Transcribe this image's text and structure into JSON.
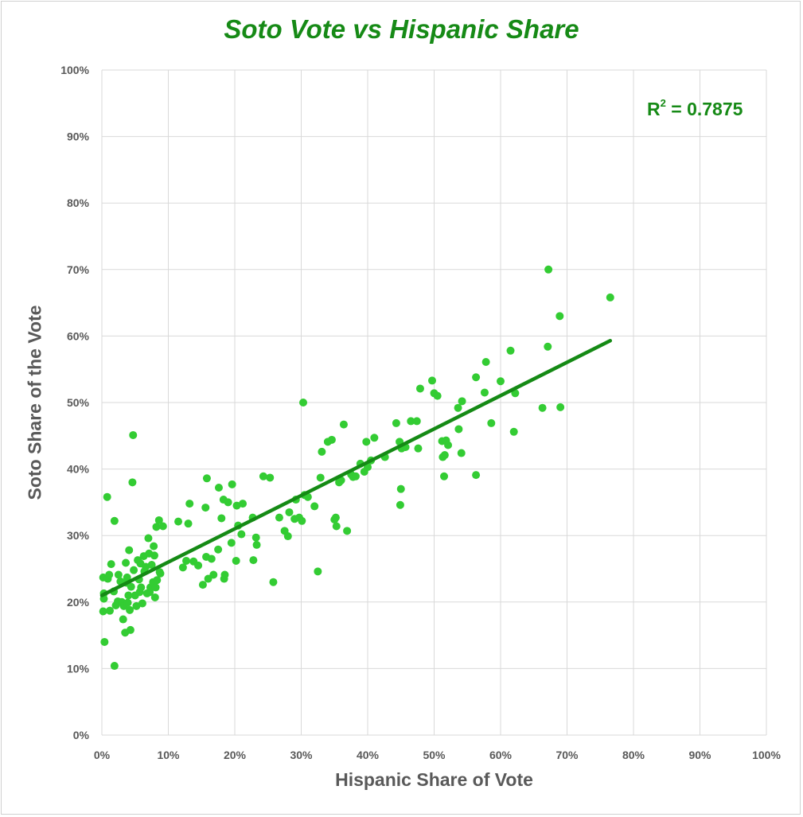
{
  "chart_data": {
    "type": "scatter",
    "title": "Soto Vote vs Hispanic Share",
    "xlabel": "Hispanic Share of Vote",
    "ylabel": "Soto Share of the Vote",
    "xlim": [
      0,
      1
    ],
    "ylim": [
      0,
      1
    ],
    "x_ticks": [
      "0%",
      "10%",
      "20%",
      "30%",
      "40%",
      "50%",
      "60%",
      "70%",
      "80%",
      "90%",
      "100%"
    ],
    "y_ticks": [
      "0%",
      "10%",
      "20%",
      "30%",
      "40%",
      "50%",
      "60%",
      "70%",
      "80%",
      "90%",
      "100%"
    ],
    "grid": true,
    "annotation_label": "R",
    "annotation_sup": "2",
    "annotation_value": " = 0.7875",
    "trendline": {
      "x": [
        0.0,
        0.765
      ],
      "y": [
        0.21,
        0.593
      ]
    },
    "colors": {
      "points": "#33cc33",
      "trendline": "#158a15",
      "title": "#168a16",
      "grid": "#d9d9d9",
      "axis_text": "#595959"
    },
    "series": [
      {
        "points": [
          [
            0.002,
            0.237
          ],
          [
            0.003,
            0.205
          ],
          [
            0.003,
            0.213
          ],
          [
            0.002,
            0.186
          ],
          [
            0.004,
            0.14
          ],
          [
            0.008,
            0.358
          ],
          [
            0.009,
            0.235
          ],
          [
            0.011,
            0.241
          ],
          [
            0.012,
            0.187
          ],
          [
            0.014,
            0.257
          ],
          [
            0.018,
            0.216
          ],
          [
            0.019,
            0.322
          ],
          [
            0.019,
            0.104
          ],
          [
            0.021,
            0.195
          ],
          [
            0.024,
            0.201
          ],
          [
            0.025,
            0.241
          ],
          [
            0.028,
            0.231
          ],
          [
            0.03,
            0.2
          ],
          [
            0.032,
            0.174
          ],
          [
            0.033,
            0.194
          ],
          [
            0.035,
            0.154
          ],
          [
            0.036,
            0.259
          ],
          [
            0.037,
            0.229
          ],
          [
            0.038,
            0.237
          ],
          [
            0.039,
            0.199
          ],
          [
            0.04,
            0.21
          ],
          [
            0.041,
            0.278
          ],
          [
            0.042,
            0.188
          ],
          [
            0.043,
            0.158
          ],
          [
            0.044,
            0.223
          ],
          [
            0.046,
            0.38
          ],
          [
            0.047,
            0.451
          ],
          [
            0.048,
            0.248
          ],
          [
            0.05,
            0.21
          ],
          [
            0.052,
            0.194
          ],
          [
            0.054,
            0.263
          ],
          [
            0.056,
            0.234
          ],
          [
            0.057,
            0.215
          ],
          [
            0.058,
            0.258
          ],
          [
            0.059,
            0.222
          ],
          [
            0.061,
            0.198
          ],
          [
            0.063,
            0.269
          ],
          [
            0.064,
            0.246
          ],
          [
            0.066,
            0.253
          ],
          [
            0.068,
            0.213
          ],
          [
            0.07,
            0.296
          ],
          [
            0.071,
            0.273
          ],
          [
            0.072,
            0.215
          ],
          [
            0.073,
            0.222
          ],
          [
            0.075,
            0.256
          ],
          [
            0.077,
            0.23
          ],
          [
            0.078,
            0.284
          ],
          [
            0.079,
            0.27
          ],
          [
            0.08,
            0.207
          ],
          [
            0.081,
            0.222
          ],
          [
            0.082,
            0.313
          ],
          [
            0.083,
            0.233
          ],
          [
            0.086,
            0.323
          ],
          [
            0.087,
            0.245
          ],
          [
            0.088,
            0.243
          ],
          [
            0.092,
            0.314
          ],
          [
            0.115,
            0.321
          ],
          [
            0.122,
            0.252
          ],
          [
            0.127,
            0.262
          ],
          [
            0.13,
            0.318
          ],
          [
            0.132,
            0.348
          ],
          [
            0.138,
            0.261
          ],
          [
            0.145,
            0.255
          ],
          [
            0.152,
            0.226
          ],
          [
            0.156,
            0.342
          ],
          [
            0.157,
            0.268
          ],
          [
            0.158,
            0.386
          ],
          [
            0.16,
            0.235
          ],
          [
            0.165,
            0.265
          ],
          [
            0.168,
            0.241
          ],
          [
            0.175,
            0.279
          ],
          [
            0.176,
            0.372
          ],
          [
            0.18,
            0.326
          ],
          [
            0.183,
            0.354
          ],
          [
            0.184,
            0.235
          ],
          [
            0.185,
            0.241
          ],
          [
            0.19,
            0.35
          ],
          [
            0.195,
            0.289
          ],
          [
            0.196,
            0.377
          ],
          [
            0.202,
            0.262
          ],
          [
            0.203,
            0.345
          ],
          [
            0.205,
            0.315
          ],
          [
            0.21,
            0.302
          ],
          [
            0.212,
            0.348
          ],
          [
            0.227,
            0.327
          ],
          [
            0.228,
            0.263
          ],
          [
            0.232,
            0.297
          ],
          [
            0.233,
            0.286
          ],
          [
            0.243,
            0.389
          ],
          [
            0.253,
            0.387
          ],
          [
            0.258,
            0.23
          ],
          [
            0.267,
            0.327
          ],
          [
            0.275,
            0.307
          ],
          [
            0.28,
            0.299
          ],
          [
            0.282,
            0.335
          ],
          [
            0.29,
            0.325
          ],
          [
            0.292,
            0.354
          ],
          [
            0.297,
            0.327
          ],
          [
            0.301,
            0.322
          ],
          [
            0.303,
            0.5
          ],
          [
            0.305,
            0.361
          ],
          [
            0.31,
            0.358
          ],
          [
            0.32,
            0.344
          ],
          [
            0.325,
            0.246
          ],
          [
            0.329,
            0.387
          ],
          [
            0.331,
            0.426
          ],
          [
            0.34,
            0.441
          ],
          [
            0.346,
            0.444
          ],
          [
            0.35,
            0.324
          ],
          [
            0.352,
            0.327
          ],
          [
            0.353,
            0.314
          ],
          [
            0.357,
            0.38
          ],
          [
            0.36,
            0.383
          ],
          [
            0.364,
            0.467
          ],
          [
            0.369,
            0.307
          ],
          [
            0.375,
            0.392
          ],
          [
            0.378,
            0.388
          ],
          [
            0.382,
            0.389
          ],
          [
            0.389,
            0.408
          ],
          [
            0.395,
            0.396
          ],
          [
            0.398,
            0.441
          ],
          [
            0.4,
            0.403
          ],
          [
            0.405,
            0.413
          ],
          [
            0.41,
            0.447
          ],
          [
            0.426,
            0.418
          ],
          [
            0.443,
            0.469
          ],
          [
            0.448,
            0.441
          ],
          [
            0.449,
            0.346
          ],
          [
            0.45,
            0.37
          ],
          [
            0.451,
            0.431
          ],
          [
            0.457,
            0.433
          ],
          [
            0.465,
            0.472
          ],
          [
            0.474,
            0.472
          ],
          [
            0.476,
            0.431
          ],
          [
            0.479,
            0.521
          ],
          [
            0.497,
            0.533
          ],
          [
            0.5,
            0.514
          ],
          [
            0.505,
            0.51
          ],
          [
            0.512,
            0.442
          ],
          [
            0.513,
            0.418
          ],
          [
            0.515,
            0.389
          ],
          [
            0.516,
            0.421
          ],
          [
            0.518,
            0.443
          ],
          [
            0.521,
            0.436
          ],
          [
            0.563,
            0.538
          ],
          [
            0.563,
            0.391
          ],
          [
            0.536,
            0.492
          ],
          [
            0.537,
            0.46
          ],
          [
            0.541,
            0.424
          ],
          [
            0.542,
            0.502
          ],
          [
            0.576,
            0.515
          ],
          [
            0.578,
            0.561
          ],
          [
            0.586,
            0.469
          ],
          [
            0.6,
            0.532
          ],
          [
            0.615,
            0.578
          ],
          [
            0.62,
            0.456
          ],
          [
            0.622,
            0.514
          ],
          [
            0.663,
            0.492
          ],
          [
            0.671,
            0.584
          ],
          [
            0.672,
            0.7
          ],
          [
            0.689,
            0.63
          ],
          [
            0.69,
            0.493
          ],
          [
            0.765,
            0.658
          ]
        ]
      }
    ]
  }
}
